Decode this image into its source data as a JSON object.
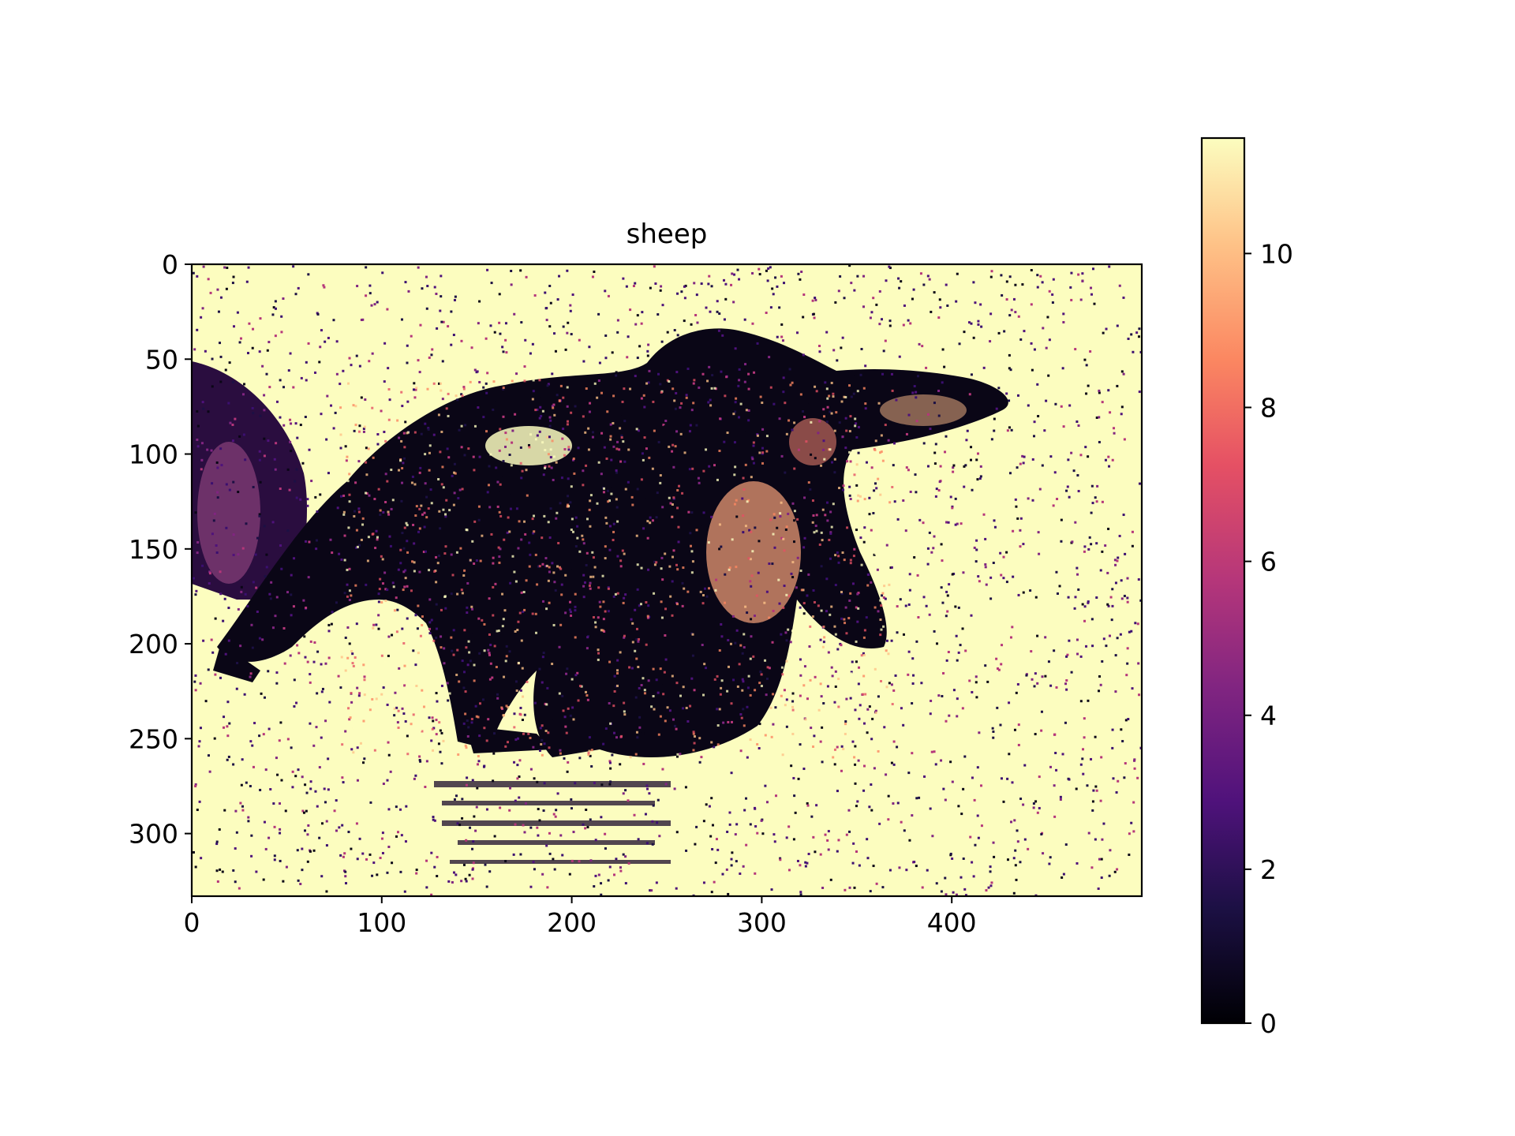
{
  "chart_data": {
    "type": "heatmap",
    "title": "sheep",
    "xlabel": "",
    "ylabel": "",
    "colormap": "magma",
    "image_size": {
      "width": 500,
      "height": 333
    },
    "x_range": [
      0,
      500
    ],
    "y_range": [
      0,
      333
    ],
    "y_inverted": true,
    "x_ticks": [
      0,
      100,
      200,
      300,
      400
    ],
    "y_ticks": [
      0,
      50,
      100,
      150,
      200,
      250,
      300
    ],
    "colorbar": {
      "range": [
        0,
        11.5
      ],
      "ticks": [
        0,
        2,
        4,
        6,
        8,
        10
      ]
    },
    "grid": false,
    "description_colors": {
      "low": "#000004",
      "mid": "#b73779",
      "high": "#fcfdbf"
    }
  }
}
